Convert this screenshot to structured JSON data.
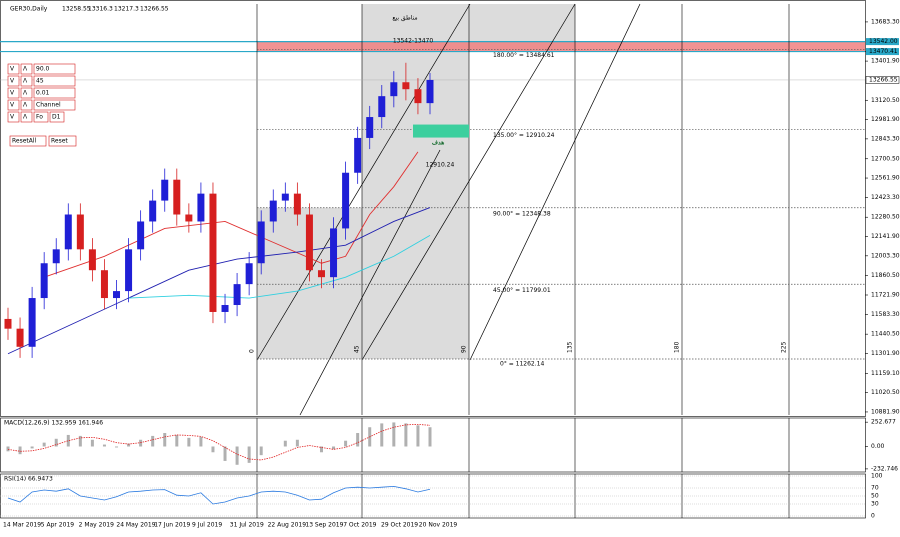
{
  "chart_data": {
    "type": "candlestick",
    "header": {
      "symbol": "GER30,Daily",
      "ohlc": [
        13258.55,
        13316.3,
        13217.3,
        13266.55
      ]
    },
    "up_color": "#1f1fd6",
    "down_color": "#d61f1f",
    "candles": {
      "open": [
        11550,
        11480,
        11350,
        11700,
        11950,
        12050,
        12300,
        12050,
        11900,
        11700,
        11750,
        12050,
        12250,
        12400,
        12550,
        12300,
        12250,
        12450,
        11600,
        11650,
        11800,
        11950,
        12250,
        12400,
        12450,
        12300,
        11900,
        11850,
        12200,
        12600,
        12850,
        13000,
        13150,
        13250,
        13200,
        13100
      ],
      "high": [
        11630,
        11560,
        11780,
        12030,
        12130,
        12380,
        12380,
        12130,
        11980,
        11830,
        12130,
        12330,
        12480,
        12630,
        12630,
        12380,
        12530,
        12530,
        11730,
        11880,
        12030,
        12330,
        12480,
        12530,
        12530,
        12380,
        11980,
        12280,
        12680,
        12930,
        13080,
        13230,
        13330,
        13390,
        13280,
        13316.3
      ],
      "low": [
        11400,
        11270,
        11270,
        11620,
        11870,
        11970,
        11970,
        11820,
        11620,
        11620,
        11670,
        11970,
        12170,
        12320,
        12220,
        12170,
        12170,
        11520,
        11520,
        11570,
        11720,
        11870,
        12170,
        12320,
        12220,
        11820,
        11770,
        11770,
        12120,
        12520,
        12770,
        12920,
        13070,
        13120,
        13020,
        13020
      ],
      "close": [
        11480,
        11350,
        11700,
        11950,
        12050,
        12300,
        12050,
        11900,
        11700,
        11750,
        12050,
        12250,
        12400,
        12550,
        12300,
        12250,
        12450,
        11600,
        11650,
        11800,
        11950,
        12250,
        12400,
        12450,
        12300,
        11900,
        11850,
        12200,
        12600,
        12850,
        13000,
        13150,
        13250,
        13200,
        13100,
        13266.55
      ]
    },
    "moving_averages": [
      {
        "color": "#e03030",
        "x": [
          3,
          8,
          13,
          18,
          22,
          26,
          28,
          30,
          32,
          34
        ],
        "values": [
          11850,
          12000,
          12200,
          12250,
          12100,
          11950,
          12000,
          12300,
          12500,
          12750
        ]
      },
      {
        "color": "#2020b0",
        "x": [
          0,
          5,
          10,
          15,
          19,
          24,
          28,
          32,
          35
        ],
        "values": [
          11300,
          11500,
          11700,
          11900,
          11980,
          12030,
          12080,
          12250,
          12350
        ]
      },
      {
        "color": "#30d0e0",
        "x": [
          10,
          15,
          20,
          24,
          28,
          32,
          35
        ],
        "values": [
          11700,
          11720,
          11700,
          11750,
          11850,
          12000,
          12150
        ]
      }
    ],
    "ylim": [
      10860,
      13812
    ],
    "yticks": [
      {
        "value": 13683.3,
        "label": "13683.30"
      },
      13470.41,
      {
        "value": 13401.9,
        "label": "13401.90"
      },
      {
        "value": 13120.5,
        "label": "13120.50"
      },
      {
        "value": 12981.9,
        "label": "12981.90"
      },
      {
        "value": 12843.3,
        "label": "12843.30"
      },
      {
        "value": 12700.5,
        "label": "12700.50"
      },
      {
        "value": 12561.9,
        "label": "12561.90"
      },
      {
        "value": 12423.3,
        "label": "12423.30"
      },
      {
        "value": 12280.5,
        "label": "12280.50"
      },
      {
        "value": 12141.9,
        "label": "12141.90"
      },
      {
        "value": 12003.3,
        "label": "12003.30"
      },
      {
        "value": 11860.5,
        "label": "11860.50"
      },
      {
        "value": 11721.9,
        "label": "11721.90"
      },
      {
        "value": 11583.3,
        "label": "11583.30"
      },
      {
        "value": 11440.5,
        "label": "11440.50"
      },
      {
        "value": 11301.9,
        "label": "11301.90"
      },
      {
        "value": 11159.1,
        "label": "11159.10"
      },
      {
        "value": 11020.5,
        "label": "11020.50"
      },
      {
        "value": 10881.9,
        "label": "10881.90"
      }
    ],
    "current_price": 13266.55,
    "sell_zone": {
      "title": "مناطق بيع",
      "label": "13542-13470",
      "top": {
        "value": 13542,
        "label": "13542.00"
      },
      "bottom": 13470.41
    },
    "target": {
      "title": "هدف",
      "label": "12910.24",
      "value": 12910.24
    },
    "gann_levels": [
      {
        "value": 13484.61,
        "label": "180.00° = 13484.61"
      },
      {
        "value": 12910.24,
        "label": "135.00° = 12910.24"
      },
      {
        "value": 12348.38,
        "label": "90.00° = 12348.38"
      },
      {
        "value": 11799.01,
        "label": "45.00° = 11799.01"
      },
      {
        "value": 11262.14,
        "label": "0° = 11262.14"
      }
    ],
    "gann_angles": [
      0,
      45,
      90,
      135,
      180,
      225
    ],
    "dates": [
      "14 Mar 2019",
      "5 Apr 2019",
      "2 May 2019",
      "24 May 2019",
      "17 Jun 2019",
      "9 Jul 2019",
      "31 Jul 2019",
      "22 Aug 2019",
      "13 Sep 2019",
      "7 Oct 2019",
      "29 Oct 2019",
      "20 Nov 2019"
    ],
    "controls": [
      [
        "V",
        "Λ",
        "90.0"
      ],
      [
        "V",
        "Λ",
        "45"
      ],
      [
        "V",
        "Λ",
        "0.01"
      ],
      [
        "V",
        "Λ",
        "Channel"
      ],
      [
        "V",
        "Λ",
        "Fo",
        "D1"
      ]
    ],
    "reset_buttons": [
      "ResetAll",
      "Reset"
    ],
    "macd": {
      "title": "MACD(12,26,9) 132.959 161.946",
      "ylim": [
        -265,
        296
      ],
      "yticks": [
        252.677,
        {
          "value": 0,
          "label": "0.00"
        },
        -232.746
      ],
      "histogram": [
        -50,
        -80,
        -20,
        40,
        80,
        120,
        110,
        70,
        20,
        -10,
        30,
        70,
        110,
        140,
        120,
        90,
        100,
        -60,
        -150,
        -190,
        -170,
        -90,
        0,
        60,
        70,
        0,
        -60,
        -30,
        60,
        140,
        200,
        240,
        250,
        240,
        220,
        200
      ],
      "signal": [
        -30,
        -50,
        -45,
        -20,
        20,
        60,
        90,
        95,
        75,
        40,
        25,
        40,
        70,
        100,
        120,
        115,
        105,
        60,
        -10,
        -80,
        -130,
        -140,
        -110,
        -60,
        -10,
        10,
        -10,
        -30,
        -10,
        40,
        100,
        160,
        200,
        225,
        230,
        220
      ]
    },
    "rsi": {
      "title": "RSI(14) 66.9473",
      "ylim": [
        0,
        100
      ],
      "yticks": [
        100,
        70,
        50,
        30,
        0
      ],
      "values": [
        45,
        35,
        60,
        65,
        62,
        68,
        50,
        45,
        40,
        48,
        60,
        62,
        65,
        66,
        52,
        50,
        58,
        30,
        35,
        45,
        50,
        60,
        62,
        60,
        52,
        40,
        42,
        58,
        70,
        72,
        70,
        72,
        74,
        68,
        60,
        66.9473
      ]
    }
  }
}
